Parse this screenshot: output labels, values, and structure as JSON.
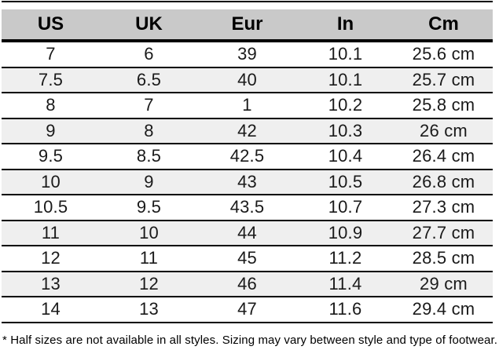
{
  "chart_data": {
    "type": "table",
    "columns": [
      "US",
      "UK",
      "Eur",
      "In",
      "Cm"
    ],
    "rows": [
      [
        "7",
        "6",
        "39",
        "10.1",
        "25.6 cm"
      ],
      [
        "7.5",
        "6.5",
        "40",
        "10.1",
        "25.7 cm"
      ],
      [
        "8",
        "7",
        "1",
        "10.2",
        "25.8 cm"
      ],
      [
        "9",
        "8",
        "42",
        "10.3",
        "26 cm"
      ],
      [
        "9.5",
        "8.5",
        "42.5",
        "10.4",
        "26.4 cm"
      ],
      [
        "10",
        "9",
        "43",
        "10.5",
        "26.8 cm"
      ],
      [
        "10.5",
        "9.5",
        "43.5",
        "10.7",
        "27.3 cm"
      ],
      [
        "11",
        "10",
        "44",
        "10.9",
        "27.7 cm"
      ],
      [
        "12",
        "11",
        "45",
        "11.2",
        "28.5 cm"
      ],
      [
        "13",
        "12",
        "46",
        "11.4",
        "29 cm"
      ],
      [
        "14",
        "13",
        "47",
        "11.6",
        "29.4 cm"
      ]
    ],
    "footnote": "* Half sizes are not available in all styles. Sizing may vary between style and type of footwear.",
    "layout_hints": {
      "stripe_pattern": "even rows shaded",
      "grid": "horizontal rules only"
    }
  },
  "colors": {
    "header_bg": "#c9c9c9",
    "row_alt_bg": "#efefef",
    "border": "#000000"
  }
}
